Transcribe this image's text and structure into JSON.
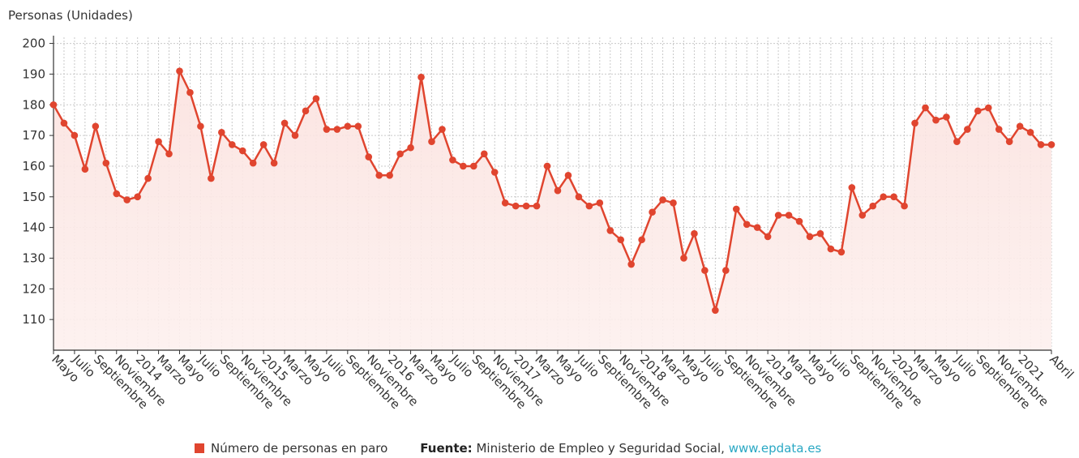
{
  "chart_data": {
    "type": "line",
    "ylabel": "Personas (Unidades)",
    "ylim": [
      100,
      202
    ],
    "yticks": [
      110,
      120,
      130,
      140,
      150,
      160,
      170,
      180,
      190,
      200
    ],
    "grid": true,
    "x_tick_labels": [
      "Mayo",
      "Julio",
      "Septiembre",
      "Noviembre",
      "2014",
      "Marzo",
      "Mayo",
      "Julio",
      "Septiembre",
      "Noviembre",
      "2015",
      "Marzo",
      "Mayo",
      "Julio",
      "Septiembre",
      "Noviembre",
      "2016",
      "Marzo",
      "Mayo",
      "Julio",
      "Septiembre",
      "Noviembre",
      "2017",
      "Marzo",
      "Mayo",
      "Julio",
      "Septiembre",
      "Noviembre",
      "2018",
      "Marzo",
      "Mayo",
      "Julio",
      "Septiembre",
      "Noviembre",
      "2019",
      "Marzo",
      "Mayo",
      "Julio",
      "Septiembre",
      "Noviembre",
      "2020",
      "Marzo",
      "Mayo",
      "Julio",
      "Septiembre",
      "Noviembre",
      "2021",
      "Abril"
    ],
    "series": [
      {
        "name": "Número de personas en paro",
        "color": "#e0452f",
        "values": [
          180,
          174,
          170,
          159,
          173,
          161,
          151,
          149,
          150,
          156,
          168,
          164,
          191,
          184,
          173,
          156,
          171,
          167,
          165,
          161,
          167,
          161,
          174,
          170,
          178,
          182,
          172,
          172,
          173,
          173,
          163,
          157,
          157,
          164,
          166,
          189,
          168,
          172,
          162,
          160,
          160,
          164,
          158,
          148,
          147,
          147,
          147,
          160,
          152,
          157,
          150,
          147,
          148,
          139,
          136,
          128,
          136,
          145,
          149,
          148,
          130,
          138,
          126,
          113,
          126,
          146,
          141,
          140,
          137,
          144,
          144,
          142,
          137,
          138,
          133,
          132,
          153,
          144,
          147,
          150,
          150,
          147,
          174,
          179,
          175,
          176,
          168,
          172,
          178,
          179,
          172,
          168,
          173,
          171,
          167,
          167
        ]
      }
    ]
  },
  "legend": {
    "series_label": "Número de personas en paro",
    "source_prefix": "Fuente:",
    "source_text": "Ministerio de Empleo y Seguridad Social,",
    "source_link": "www.epdata.es"
  }
}
